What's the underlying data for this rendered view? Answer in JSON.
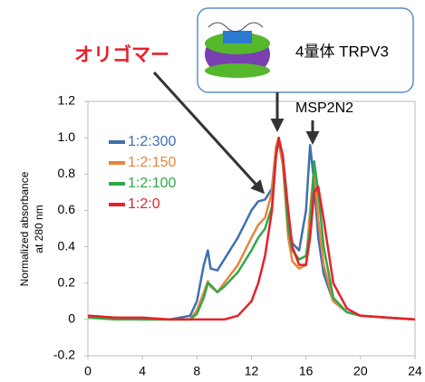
{
  "chart_data": {
    "type": "line",
    "ylabel": [
      "Normalized absorbance",
      "at 280 nm"
    ],
    "annotations": [
      "オリゴマー",
      "4量体 TRPV3",
      "MSP2N2"
    ],
    "x": [
      0,
      2,
      4,
      6,
      7.5,
      8,
      8.5,
      8.8,
      9,
      9.5,
      10,
      11,
      12,
      12.5,
      13,
      13.5,
      13.8,
      14,
      14.3,
      14.7,
      15,
      15.5,
      16,
      16.3,
      16.6,
      16.9,
      17.3,
      18,
      19,
      20,
      22,
      24
    ],
    "series": [
      {
        "name": "1:2:300",
        "color": "#3f6fb0",
        "values": [
          0.02,
          0.01,
          0.0,
          0.0,
          0.02,
          0.1,
          0.3,
          0.38,
          0.28,
          0.27,
          0.33,
          0.45,
          0.6,
          0.65,
          0.66,
          0.72,
          0.95,
          0.98,
          0.85,
          0.55,
          0.42,
          0.38,
          0.6,
          0.96,
          0.75,
          0.45,
          0.25,
          0.1,
          0.04,
          0.02,
          0.01,
          0.0
        ]
      },
      {
        "name": "1:2:150",
        "color": "#e8843c",
        "values": [
          0.01,
          0.01,
          0.0,
          0.0,
          0.0,
          0.05,
          0.15,
          0.21,
          0.18,
          0.15,
          0.2,
          0.3,
          0.45,
          0.52,
          0.56,
          0.7,
          0.95,
          1.0,
          0.85,
          0.45,
          0.32,
          0.28,
          0.3,
          0.6,
          0.83,
          0.55,
          0.3,
          0.1,
          0.04,
          0.02,
          0.01,
          0.0
        ]
      },
      {
        "name": "1:2:100",
        "color": "#2ea84a",
        "values": [
          0.01,
          0.0,
          0.0,
          0.0,
          0.0,
          0.03,
          0.12,
          0.2,
          0.19,
          0.15,
          0.18,
          0.26,
          0.38,
          0.45,
          0.5,
          0.62,
          0.9,
          0.99,
          0.9,
          0.5,
          0.38,
          0.33,
          0.35,
          0.5,
          0.87,
          0.7,
          0.4,
          0.12,
          0.04,
          0.02,
          0.01,
          0.0
        ]
      },
      {
        "name": "1:2:0",
        "color": "#e8202a",
        "values": [
          0.02,
          0.01,
          0.01,
          0.0,
          0.0,
          0.0,
          0.0,
          0.0,
          0.0,
          0.0,
          0.0,
          0.02,
          0.1,
          0.2,
          0.35,
          0.6,
          0.9,
          1.0,
          0.9,
          0.6,
          0.4,
          0.3,
          0.3,
          0.45,
          0.7,
          0.73,
          0.55,
          0.2,
          0.06,
          0.02,
          0.01,
          0.0
        ]
      }
    ],
    "xlim": [
      0,
      24
    ],
    "xticks": [
      0,
      4,
      8,
      12,
      16,
      20,
      24
    ],
    "ylim": [
      -0.2,
      1.2
    ],
    "yticks": [
      -0.2,
      0,
      0.2,
      0.4,
      0.6,
      {
        "value": 0.8,
        "label": "0.8"
      },
      {
        "value": 1,
        "label": "1.0"
      },
      1.2
    ],
    "legend": "upper left"
  }
}
